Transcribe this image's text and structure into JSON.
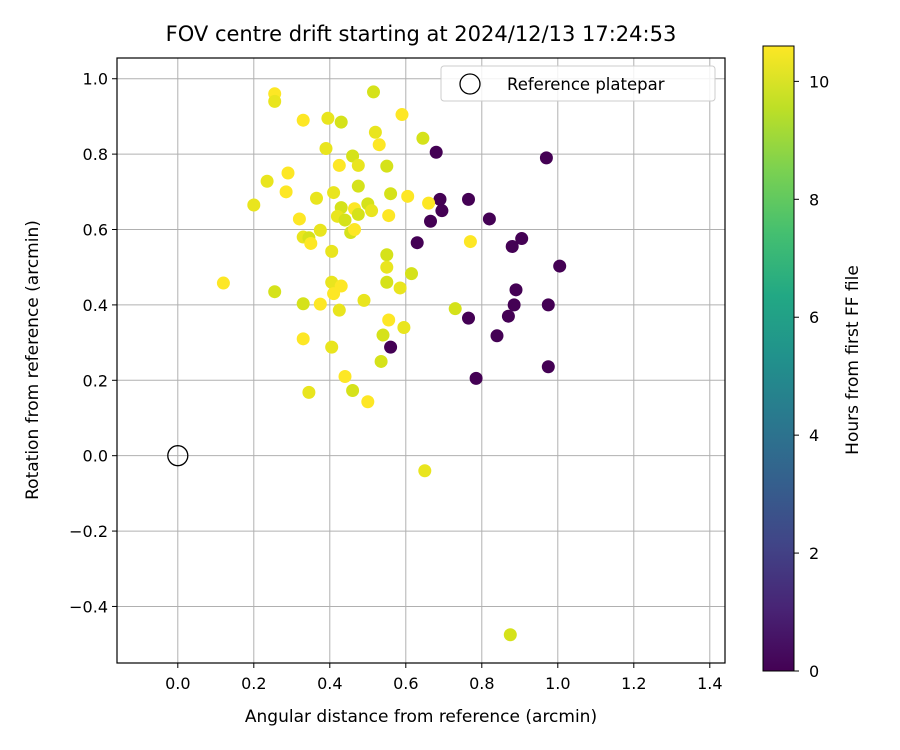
{
  "chart_data": {
    "type": "scatter",
    "title": "FOV centre drift starting at 2024/12/13 17:24:53",
    "xlabel": "Angular distance from reference (arcmin)",
    "ylabel": "Rotation from reference (arcmin)",
    "xlim": [
      -0.16,
      1.44
    ],
    "ylim": [
      -0.55,
      1.055
    ],
    "xticks": [
      0.0,
      0.2,
      0.4,
      0.6,
      0.8,
      1.0,
      1.2,
      1.4
    ],
    "xtick_labels": [
      "0.0",
      "0.2",
      "0.4",
      "0.6",
      "0.8",
      "1.0",
      "1.2",
      "1.4"
    ],
    "yticks": [
      -0.4,
      -0.2,
      0.0,
      0.2,
      0.4,
      0.6,
      0.8,
      1.0
    ],
    "ytick_labels": [
      "−0.4",
      "−0.2",
      "0.0",
      "0.2",
      "0.4",
      "0.6",
      "0.8",
      "1.0"
    ],
    "grid": true,
    "legend": {
      "location": "top-right",
      "entries": [
        {
          "label": "Reference platepar",
          "marker": "open-circle"
        }
      ]
    },
    "reference_point": {
      "x": 0.0,
      "y": 0.0
    },
    "colorbar": {
      "label": "Hours from first FF file",
      "colormap": "viridis",
      "range": [
        0,
        10.6
      ],
      "ticks": [
        0,
        2,
        4,
        6,
        8,
        10
      ],
      "tick_labels": [
        "0",
        "2",
        "4",
        "6",
        "8",
        "10"
      ]
    },
    "early_color": "#440154",
    "late_colors": [
      "#fde725",
      "#e9e51e",
      "#d5e21a"
    ],
    "series": [
      {
        "hours": 0.2,
        "points": [
          [
            0.68,
            0.805
          ],
          [
            0.97,
            0.79
          ],
          [
            0.69,
            0.68
          ],
          [
            0.765,
            0.68
          ],
          [
            0.665,
            0.622
          ],
          [
            0.695,
            0.65
          ],
          [
            0.82,
            0.628
          ],
          [
            0.905,
            0.576
          ],
          [
            0.88,
            0.555
          ],
          [
            0.63,
            0.565
          ],
          [
            1.005,
            0.503
          ],
          [
            0.89,
            0.44
          ],
          [
            0.885,
            0.4
          ],
          [
            0.975,
            0.4
          ],
          [
            0.87,
            0.37
          ],
          [
            0.765,
            0.365
          ],
          [
            0.84,
            0.318
          ],
          [
            0.56,
            0.288
          ],
          [
            0.785,
            0.205
          ],
          [
            0.975,
            0.236
          ]
        ]
      },
      {
        "hours": 10.4,
        "points": [
          [
            0.255,
            0.96
          ],
          [
            0.255,
            0.94
          ],
          [
            0.515,
            0.965
          ],
          [
            0.33,
            0.89
          ],
          [
            0.395,
            0.895
          ],
          [
            0.43,
            0.885
          ],
          [
            0.59,
            0.905
          ],
          [
            0.52,
            0.858
          ],
          [
            0.645,
            0.842
          ],
          [
            0.53,
            0.825
          ],
          [
            0.39,
            0.815
          ],
          [
            0.46,
            0.795
          ],
          [
            0.425,
            0.77
          ],
          [
            0.475,
            0.77
          ],
          [
            0.55,
            0.768
          ],
          [
            0.29,
            0.75
          ],
          [
            0.235,
            0.728
          ],
          [
            0.475,
            0.715
          ],
          [
            0.285,
            0.7
          ],
          [
            0.41,
            0.698
          ],
          [
            0.56,
            0.695
          ],
          [
            0.605,
            0.688
          ],
          [
            0.365,
            0.683
          ],
          [
            0.5,
            0.668
          ],
          [
            0.66,
            0.67
          ],
          [
            0.2,
            0.665
          ],
          [
            0.43,
            0.658
          ],
          [
            0.465,
            0.655
          ],
          [
            0.51,
            0.65
          ],
          [
            0.475,
            0.64
          ],
          [
            0.555,
            0.637
          ],
          [
            0.42,
            0.635
          ],
          [
            0.44,
            0.625
          ],
          [
            0.32,
            0.628
          ],
          [
            0.375,
            0.598
          ],
          [
            0.455,
            0.592
          ],
          [
            0.465,
            0.6
          ],
          [
            0.33,
            0.58
          ],
          [
            0.345,
            0.578
          ],
          [
            0.35,
            0.563
          ],
          [
            0.405,
            0.542
          ],
          [
            0.55,
            0.533
          ],
          [
            0.77,
            0.568
          ],
          [
            0.55,
            0.5
          ],
          [
            0.615,
            0.483
          ],
          [
            0.12,
            0.458
          ],
          [
            0.405,
            0.46
          ],
          [
            0.55,
            0.46
          ],
          [
            0.43,
            0.45
          ],
          [
            0.585,
            0.445
          ],
          [
            0.255,
            0.435
          ],
          [
            0.41,
            0.43
          ],
          [
            0.49,
            0.412
          ],
          [
            0.33,
            0.403
          ],
          [
            0.375,
            0.402
          ],
          [
            0.425,
            0.386
          ],
          [
            0.73,
            0.39
          ],
          [
            0.555,
            0.36
          ],
          [
            0.595,
            0.34
          ],
          [
            0.54,
            0.32
          ],
          [
            0.33,
            0.31
          ],
          [
            0.405,
            0.288
          ],
          [
            0.535,
            0.25
          ],
          [
            0.44,
            0.21
          ],
          [
            0.345,
            0.168
          ],
          [
            0.46,
            0.173
          ],
          [
            0.5,
            0.143
          ],
          [
            0.65,
            -0.04
          ],
          [
            0.875,
            -0.475
          ]
        ]
      }
    ]
  }
}
